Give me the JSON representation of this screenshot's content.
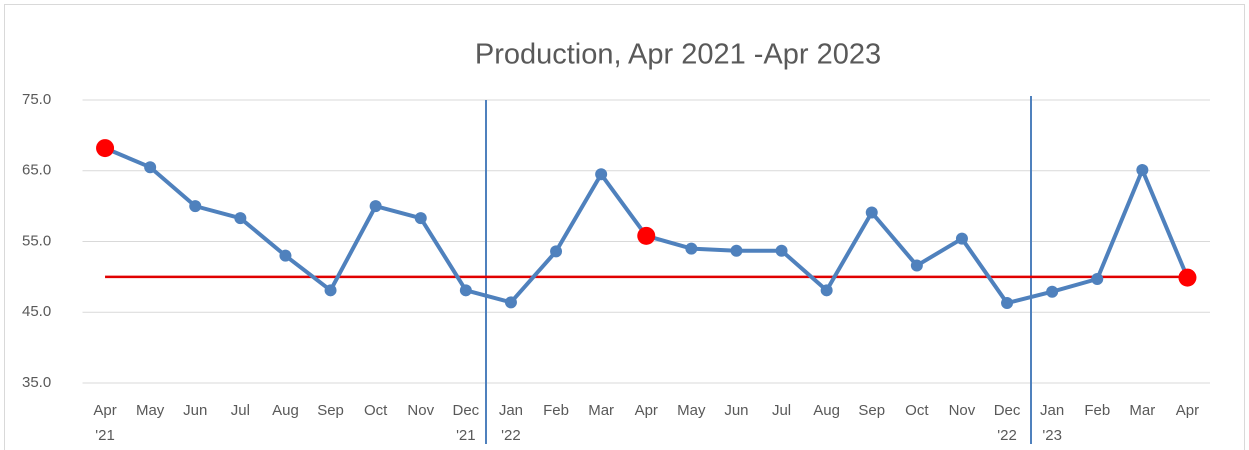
{
  "chart_data": {
    "type": "line",
    "title": "Production, Apr 2021 -Apr 2023",
    "categories": [
      "Apr '21",
      "May",
      "Jun",
      "Jul",
      "Aug",
      "Sep",
      "Oct",
      "Nov",
      "Dec '21",
      "Jan '22",
      "Feb",
      "Mar",
      "Apr",
      "May",
      "Jun",
      "Jul",
      "Aug",
      "Sep",
      "Oct",
      "Nov",
      "Dec '22",
      "Jan '23",
      "Feb",
      "Mar",
      "Apr"
    ],
    "series": [
      {
        "name": "Production",
        "color": "#4f81bd",
        "values": [
          68.2,
          65.5,
          60.0,
          58.3,
          53.0,
          48.1,
          60.0,
          58.3,
          48.1,
          46.4,
          53.6,
          64.5,
          55.8,
          54.0,
          53.7,
          53.7,
          48.1,
          59.1,
          51.6,
          55.4,
          46.3,
          47.9,
          49.7,
          65.1,
          49.9
        ]
      }
    ],
    "highlight": [
      0,
      12,
      24
    ],
    "highlight_color": "#ff0000",
    "reference_line": 50.0,
    "reference_color": "#e00000",
    "ylim": [
      35,
      75
    ],
    "yticks": [
      {
        "value": 35,
        "label": "35.0"
      },
      {
        "value": 45,
        "label": "45.0"
      },
      {
        "value": 55,
        "label": "55.0"
      },
      {
        "value": 65,
        "label": "65.0"
      },
      {
        "value": 75,
        "label": "75.0"
      }
    ],
    "grid": true
  }
}
